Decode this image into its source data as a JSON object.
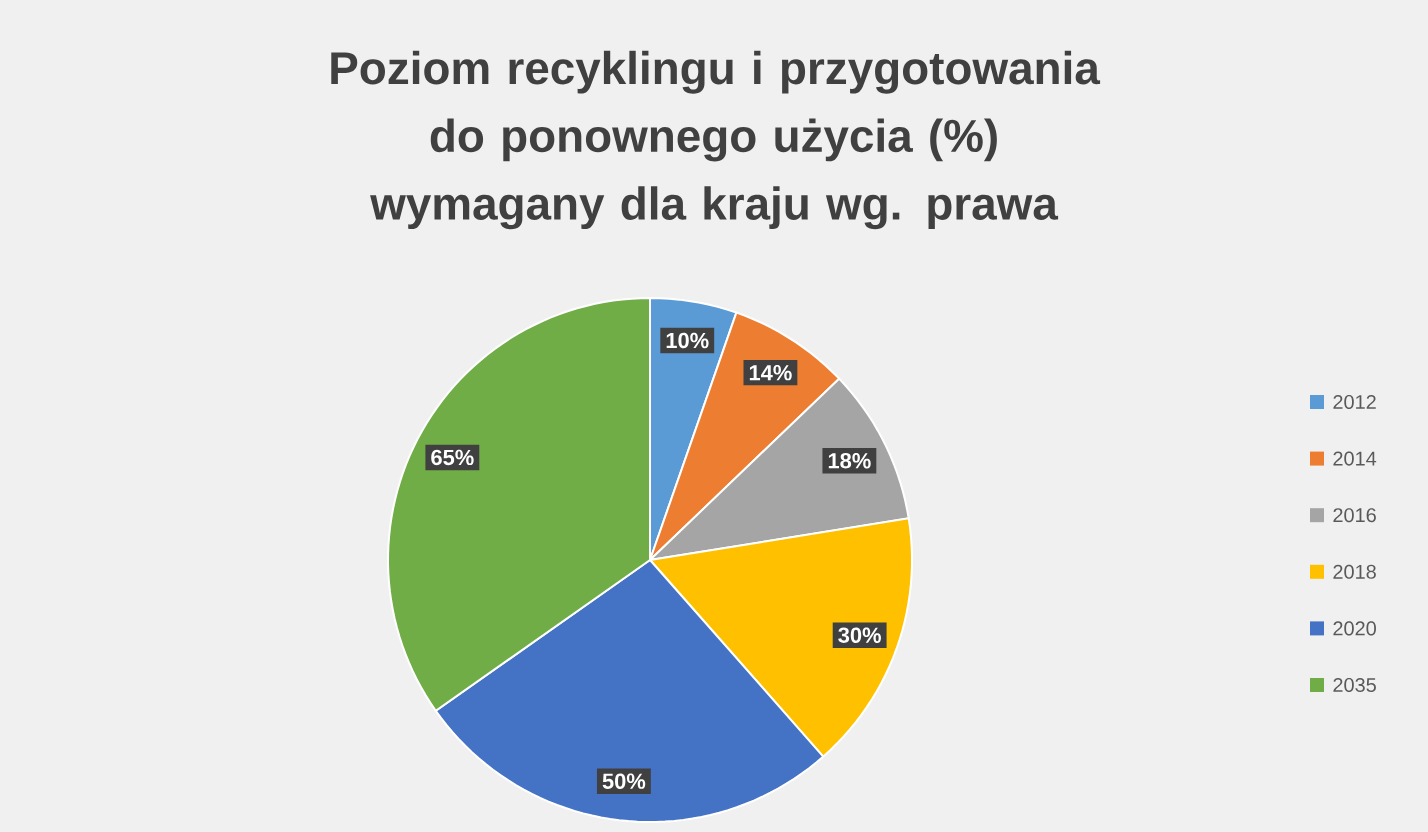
{
  "chart_data": {
    "type": "pie",
    "title": "Poziom recyklingu i przygotowania do ponownego użycia (%) wymagany dla kraju wg. prawa",
    "categories": [
      "2012",
      "2014",
      "2016",
      "2018",
      "2020",
      "2035"
    ],
    "values": [
      10,
      14,
      18,
      30,
      50,
      65
    ],
    "value_labels": [
      "10%",
      "14%",
      "18%",
      "30%",
      "50%",
      "65%"
    ],
    "colors": [
      "#5b9bd5",
      "#ed7d31",
      "#a5a5a5",
      "#ffc000",
      "#4472c4",
      "#70ad47"
    ],
    "legend": "right"
  }
}
